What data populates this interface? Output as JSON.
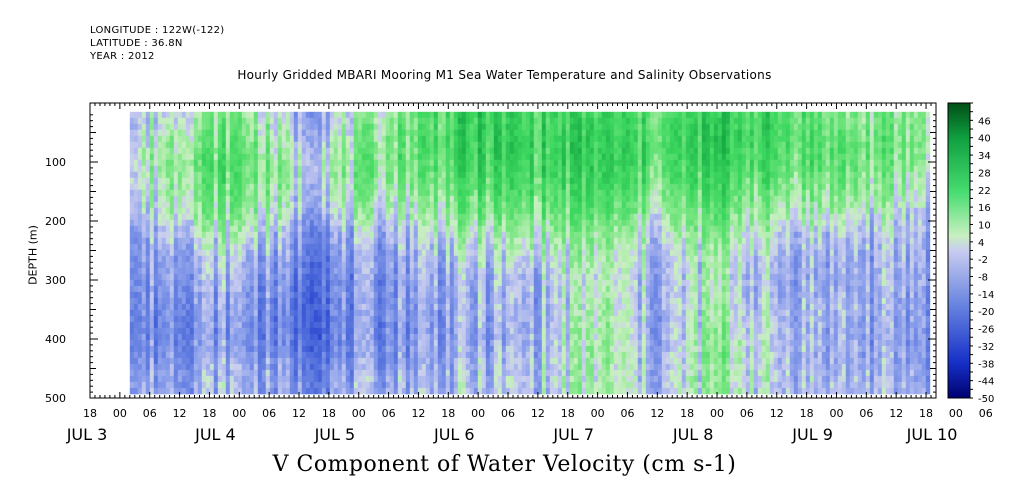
{
  "header": {
    "longitude": "LONGITUDE : 122W(-122)",
    "latitude": "LATITUDE : 36.8N",
    "year": "YEAR : 2012"
  },
  "chart_data": {
    "type": "heatmap",
    "title": "Hourly Gridded MBARI Mooring M1 Sea Water Temperature and Salinity Observations",
    "ylabel": "DEPTH (m)",
    "xlabel": "V Component of Water Velocity (cm s-1)",
    "y_reversed": true,
    "ylim": [
      500,
      0
    ],
    "y_ticks": [
      100,
      200,
      300,
      400,
      500
    ],
    "x_range_hours": [
      "JUL 3 18:00",
      "JUL 10 20:00"
    ],
    "x_hour_ticks": [
      "18",
      "00",
      "06",
      "12",
      "18",
      "00",
      "06",
      "12",
      "18",
      "00",
      "06",
      "12",
      "18",
      "00",
      "06",
      "12",
      "18",
      "00",
      "06",
      "12",
      "18",
      "00",
      "06",
      "12",
      "18",
      "00",
      "06",
      "12",
      "18",
      "00",
      "06",
      "12",
      "18"
    ],
    "x_day_labels": [
      "JUL 3",
      "JUL 4",
      "JUL 5",
      "JUL 6",
      "JUL 7",
      "JUL 8",
      "JUL 9",
      "JUL 10"
    ],
    "colorbar": {
      "tick_labels": [
        "46",
        "40",
        "34",
        "28",
        "22",
        "16",
        "10",
        "4",
        "-2",
        "-8",
        "-14",
        "-20",
        "-26",
        "-32",
        "-38",
        "-44",
        "-50"
      ],
      "levels_min": -50,
      "levels_max": 52,
      "level_step": 3
    },
    "depth_rows": [
      20,
      60,
      100,
      140,
      180,
      220,
      260,
      300,
      340,
      380,
      420,
      460
    ],
    "day_columns": [
      "JUL 4 00:00",
      "JUL 4 12:00",
      "JUL 5 00:00",
      "JUL 5 12:00",
      "JUL 6 00:00",
      "JUL 6 12:00",
      "JUL 7 00:00",
      "JUL 7 12:00",
      "JUL 8 00:00",
      "JUL 8 12:00",
      "JUL 9 00:00",
      "JUL 9 12:00",
      "JUL 10 00:00",
      "JUL 10 12:00"
    ],
    "approx_values": [
      [
        -8,
        4,
        10,
        -8,
        2,
        14,
        22,
        18,
        20,
        14,
        22,
        18,
        10,
        8
      ],
      [
        -6,
        10,
        14,
        -4,
        6,
        16,
        22,
        20,
        22,
        16,
        24,
        18,
        14,
        10
      ],
      [
        -4,
        12,
        16,
        0,
        8,
        14,
        20,
        18,
        22,
        14,
        22,
        16,
        14,
        8
      ],
      [
        -6,
        10,
        14,
        -2,
        6,
        10,
        16,
        16,
        18,
        10,
        18,
        10,
        10,
        4
      ],
      [
        -10,
        6,
        10,
        -6,
        0,
        4,
        10,
        10,
        14,
        4,
        14,
        4,
        4,
        -2
      ],
      [
        -14,
        0,
        2,
        -12,
        -8,
        -2,
        2,
        4,
        8,
        -2,
        8,
        -2,
        -4,
        -6
      ],
      [
        -16,
        -6,
        -4,
        -16,
        -12,
        -6,
        -4,
        -2,
        4,
        -6,
        4,
        -6,
        -8,
        -8
      ],
      [
        -16,
        -8,
        -8,
        -18,
        -14,
        -8,
        -8,
        -6,
        2,
        -8,
        2,
        -8,
        -8,
        -8
      ],
      [
        -18,
        -10,
        -10,
        -20,
        -14,
        -10,
        -8,
        -8,
        4,
        -8,
        4,
        -6,
        -6,
        -10
      ],
      [
        -20,
        -12,
        -12,
        -22,
        -16,
        -10,
        -10,
        -8,
        6,
        -10,
        6,
        -4,
        -8,
        -10
      ],
      [
        -16,
        -10,
        -10,
        -18,
        -14,
        -10,
        -8,
        -6,
        6,
        -8,
        8,
        -4,
        -8,
        -10
      ],
      [
        -12,
        -8,
        -6,
        -14,
        -10,
        -6,
        -6,
        -4,
        4,
        -6,
        6,
        -4,
        -6,
        -8
      ]
    ]
  }
}
